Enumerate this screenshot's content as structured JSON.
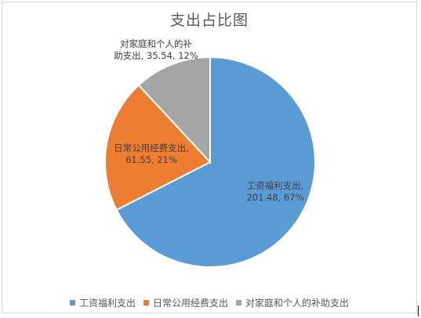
{
  "chart_data": {
    "type": "pie",
    "title": "支出占比图",
    "categories": [
      "工资福利支出",
      "日常公用经费支出",
      "对家庭和个人的补助支出"
    ],
    "values": [
      201.48,
      61.55,
      35.54
    ],
    "percentages": [
      "67%",
      "21%",
      "12%"
    ],
    "colors": [
      "#5b9bd5",
      "#ed7d31",
      "#a5a5a5"
    ],
    "data_labels": [
      [
        "工资福利支出,",
        "201.48, 67%"
      ],
      [
        "日常公用经费支出,",
        "61.55, 21%"
      ],
      [
        "对家庭和个人的补",
        "助支出, 35.54, 12%"
      ]
    ],
    "legend_position": "bottom",
    "legend": [
      "工资福利支出",
      "日常公用经费支出",
      "对家庭和个人的补助支出"
    ]
  }
}
